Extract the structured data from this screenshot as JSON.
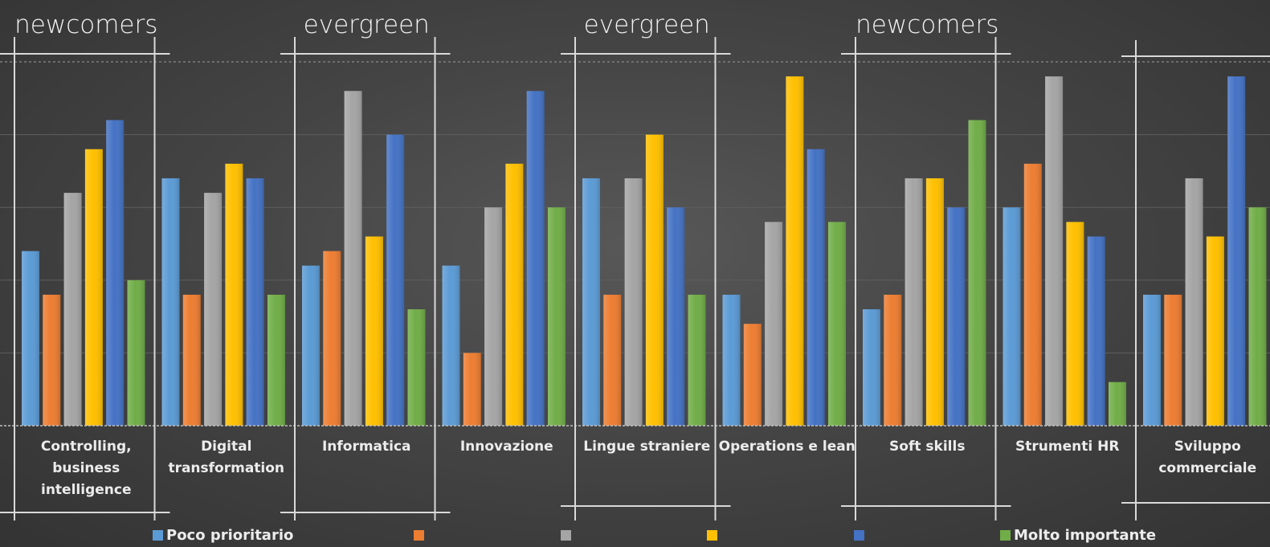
{
  "chart_data": {
    "type": "bar",
    "categories": [
      [
        "Controlling,",
        "business",
        "intelligence"
      ],
      [
        "Digital",
        "transformation"
      ],
      [
        "Informatica"
      ],
      [
        "Innovazione"
      ],
      [
        "Lingue straniere"
      ],
      [
        "Operations e lean"
      ],
      [
        "Soft skills"
      ],
      [
        "Strumenti HR"
      ],
      [
        "Sviluppo",
        "commerciale"
      ]
    ],
    "series": [
      {
        "name": "Poco prioritario",
        "color": "#5b9bd5",
        "values": [
          12,
          17,
          11,
          11,
          17,
          9,
          8,
          15,
          9
        ]
      },
      {
        "name": "",
        "color": "#ed7d31",
        "values": [
          9,
          9,
          12,
          5,
          9,
          7,
          9,
          18,
          9
        ]
      },
      {
        "name": "",
        "color": "#a5a5a5",
        "values": [
          16,
          16,
          23,
          15,
          17,
          14,
          17,
          24,
          17
        ]
      },
      {
        "name": "",
        "color": "#ffc000",
        "values": [
          19,
          18,
          13,
          18,
          20,
          24,
          17,
          14,
          13
        ]
      },
      {
        "name": "",
        "color": "#4472c4",
        "values": [
          21,
          17,
          20,
          23,
          15,
          19,
          15,
          13,
          24
        ]
      },
      {
        "name": "Molto importante",
        "color": "#70ad47",
        "values": [
          10,
          9,
          8,
          15,
          9,
          14,
          21,
          3,
          15
        ]
      }
    ],
    "ylim": [
      0,
      25
    ],
    "grid": true,
    "legend_position": "bottom",
    "annotations": [
      {
        "label": "newcomers",
        "categories": [
          0
        ]
      },
      {
        "label": "evergreen",
        "categories": [
          2
        ]
      },
      {
        "label": "evergreen",
        "categories": [
          4
        ]
      },
      {
        "label": "newcomers",
        "categories": [
          6
        ]
      }
    ]
  }
}
